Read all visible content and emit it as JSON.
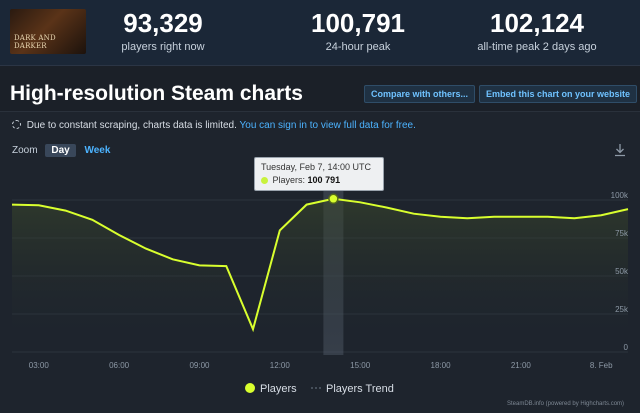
{
  "game": {
    "thumb_text": "DARK AND DARKER"
  },
  "stats": [
    {
      "value": "93,329",
      "label": "players right now"
    },
    {
      "value": "100,791",
      "label": "24-hour peak"
    },
    {
      "value": "102,124",
      "label": "all-time peak 2 days ago"
    }
  ],
  "page_title": "High-resolution Steam charts",
  "buttons": {
    "compare": "Compare with others...",
    "embed": "Embed this chart on your website"
  },
  "notice": {
    "text": "Due to constant scraping, charts data is limited.",
    "link": "You can sign in to view full data for free."
  },
  "zoom": {
    "label": "Zoom",
    "options": [
      "Day",
      "Week"
    ],
    "active": "Day"
  },
  "icons": {
    "download": "download-icon",
    "loading": "loading-circle-icon"
  },
  "colors": {
    "players_line": "#d9ff2e",
    "link": "#4cb3ff",
    "background": "#1b2028"
  },
  "tooltip": {
    "date": "Tuesday, Feb 7, 14:00 UTC",
    "series": "Players:",
    "value": "100 791"
  },
  "credit": "SteamDB.info (powered by Highcharts.com)",
  "chart_data": {
    "type": "line",
    "title": "",
    "xlabel": "",
    "ylabel": "",
    "x_tick_labels": [
      "03:00",
      "06:00",
      "09:00",
      "12:00",
      "15:00",
      "18:00",
      "21:00",
      "8. Feb"
    ],
    "y_tick_labels": [
      "0",
      "25k",
      "50k",
      "75k",
      "100k"
    ],
    "ylim": [
      0,
      100000
    ],
    "grid": true,
    "legend_position": "bottom",
    "highlighted_point": {
      "x": "14:00",
      "y": 100791
    },
    "series": [
      {
        "name": "Players",
        "x": [
          "02:00",
          "03:00",
          "04:00",
          "05:00",
          "06:00",
          "07:00",
          "08:00",
          "09:00",
          "10:00",
          "11:00",
          "12:00",
          "13:00",
          "14:00",
          "15:00",
          "16:00",
          "17:00",
          "18:00",
          "19:00",
          "20:00",
          "21:00",
          "22:00",
          "23:00",
          "00:00",
          "01:00"
        ],
        "values": [
          97000,
          96500,
          93000,
          87000,
          77000,
          68000,
          61000,
          57000,
          56500,
          15000,
          80000,
          97000,
          100791,
          98500,
          95000,
          91000,
          89000,
          88000,
          89000,
          89000,
          89000,
          88000,
          90000,
          94000
        ]
      },
      {
        "name": "Players Trend",
        "values": []
      }
    ]
  }
}
